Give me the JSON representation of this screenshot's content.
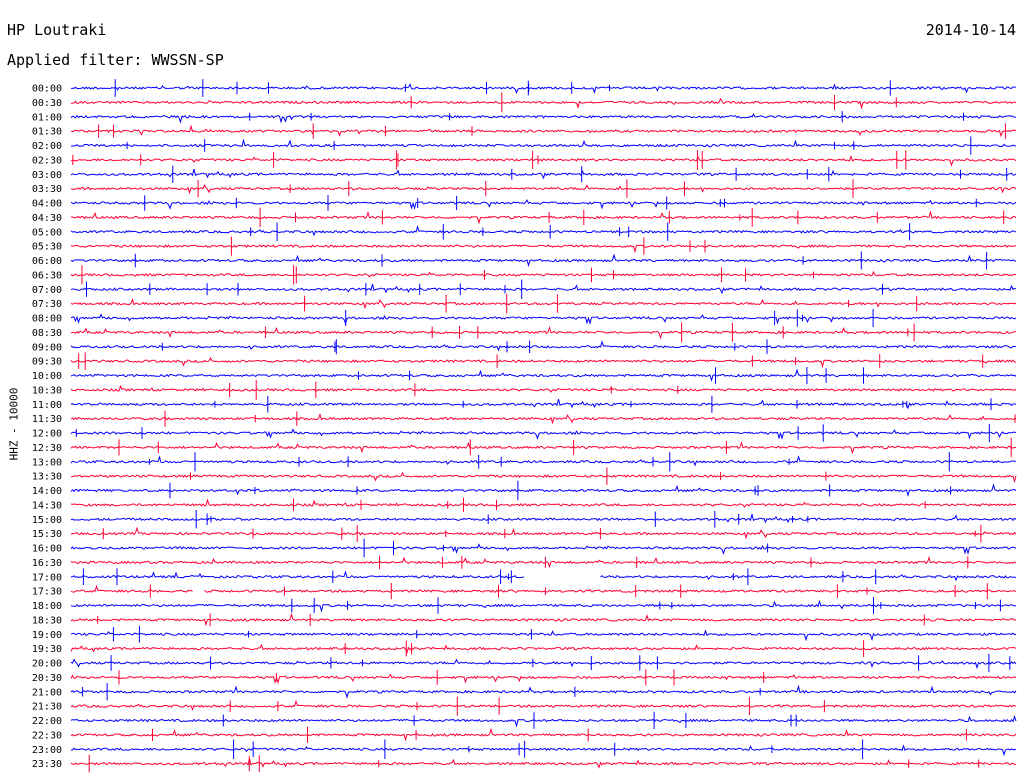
{
  "header": {
    "station": "HP Loutraki",
    "date": "2014-10-14",
    "filter_label": "Applied filter: WWSSN-SP"
  },
  "chart_data": {
    "type": "helicorder",
    "ylabel": "HHZ - 10000",
    "row_colors": [
      "#0000ff",
      "#ff0033"
    ],
    "tick_labels": [
      "00:00",
      "00:30",
      "01:00",
      "01:30",
      "02:00",
      "02:30",
      "03:00",
      "03:30",
      "04:00",
      "04:30",
      "05:00",
      "05:30",
      "06:00",
      "06:30",
      "07:00",
      "07:30",
      "08:00",
      "08:30",
      "09:00",
      "09:30",
      "10:00",
      "10:30",
      "11:00",
      "11:30",
      "12:00",
      "12:30",
      "13:00",
      "13:30",
      "14:00",
      "14:30",
      "15:00",
      "15:30",
      "16:00",
      "16:30",
      "17:00",
      "17:30",
      "18:00",
      "18:30",
      "19:00",
      "19:30",
      "20:00",
      "20:30",
      "21:00",
      "21:30",
      "22:00",
      "22:30",
      "23:00",
      "23:30"
    ],
    "rows_minutes_per_line": 30,
    "data_gaps": [
      {
        "row": "17:00",
        "from_fraction": 0.48,
        "to_fraction": 0.56
      },
      {
        "row": "17:30",
        "from_fraction": 0.13,
        "to_fraction": 0.14
      }
    ]
  }
}
